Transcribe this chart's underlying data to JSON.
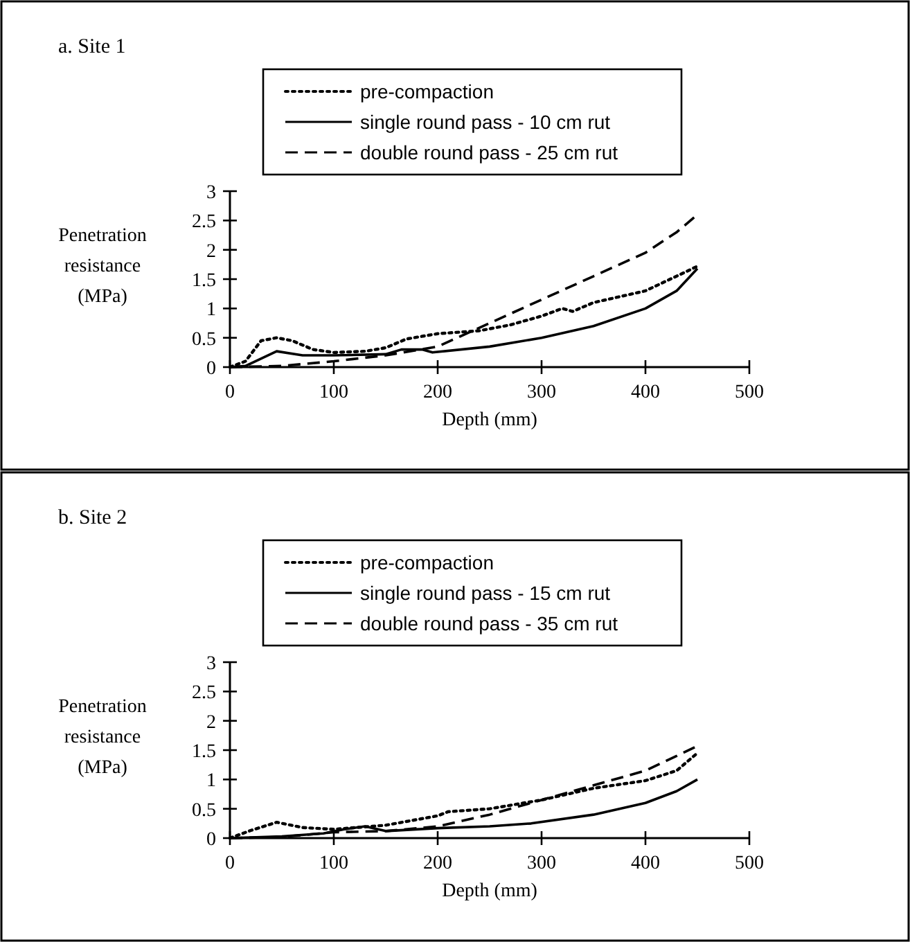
{
  "chart_data": [
    {
      "type": "line",
      "title": "a. Site 1",
      "xlabel": "Depth (mm)",
      "ylabel": "Penetration resistance (MPa)",
      "xlim": [
        0,
        500
      ],
      "xticks": [
        0,
        100,
        200,
        300,
        400,
        500
      ],
      "ylim": [
        0,
        3
      ],
      "yticks": [
        0,
        0.5,
        1,
        1.5,
        2,
        2.5,
        3
      ],
      "grid": false,
      "legend": "top",
      "marker": "none",
      "series": [
        {
          "name": "pre-compaction",
          "color": "#000000",
          "line_style": "dotted",
          "x": [
            0,
            15,
            30,
            45,
            60,
            80,
            100,
            130,
            150,
            170,
            200,
            240,
            270,
            300,
            320,
            330,
            350,
            400,
            430,
            450
          ],
          "values": [
            0,
            0.1,
            0.45,
            0.5,
            0.45,
            0.3,
            0.25,
            0.27,
            0.33,
            0.48,
            0.57,
            0.62,
            0.72,
            0.87,
            1.0,
            0.95,
            1.1,
            1.3,
            1.55,
            1.72
          ]
        },
        {
          "name": "single round pass - 10 cm rut",
          "color": "#000000",
          "line_style": "solid",
          "x": [
            0,
            15,
            45,
            70,
            100,
            150,
            165,
            185,
            195,
            250,
            300,
            350,
            400,
            430,
            450
          ],
          "values": [
            0,
            0.02,
            0.27,
            0.2,
            0.2,
            0.22,
            0.3,
            0.3,
            0.25,
            0.35,
            0.5,
            0.7,
            1.0,
            1.3,
            1.68
          ]
        },
        {
          "name": "double round pass - 25 cm rut",
          "color": "#000000",
          "line_style": "dashed",
          "x": [
            0,
            50,
            100,
            150,
            200,
            250,
            300,
            350,
            400,
            430,
            450
          ],
          "values": [
            0,
            0.02,
            0.1,
            0.2,
            0.35,
            0.75,
            1.15,
            1.55,
            1.95,
            2.3,
            2.6
          ]
        }
      ]
    },
    {
      "type": "line",
      "title": "b. Site 2",
      "xlabel": "Depth (mm)",
      "ylabel": "Penetration resistance (MPa)",
      "xlim": [
        0,
        500
      ],
      "xticks": [
        0,
        100,
        200,
        300,
        400,
        500
      ],
      "ylim": [
        0,
        3
      ],
      "yticks": [
        0,
        0.5,
        1,
        1.5,
        2,
        2.5,
        3
      ],
      "grid": false,
      "legend": "top",
      "marker": "none",
      "series": [
        {
          "name": "pre-compaction",
          "color": "#000000",
          "line_style": "dotted",
          "x": [
            0,
            20,
            45,
            70,
            100,
            150,
            200,
            210,
            250,
            300,
            350,
            400,
            430,
            450
          ],
          "values": [
            0,
            0.13,
            0.27,
            0.18,
            0.15,
            0.22,
            0.38,
            0.45,
            0.5,
            0.65,
            0.85,
            0.98,
            1.15,
            1.45
          ]
        },
        {
          "name": "single round pass - 15 cm rut",
          "color": "#000000",
          "line_style": "solid",
          "x": [
            0,
            50,
            90,
            110,
            130,
            150,
            200,
            250,
            290,
            350,
            400,
            430,
            450
          ],
          "values": [
            0,
            0.03,
            0.08,
            0.15,
            0.2,
            0.12,
            0.17,
            0.2,
            0.25,
            0.4,
            0.6,
            0.8,
            1.0
          ]
        },
        {
          "name": "double round pass - 35 cm rut",
          "color": "#000000",
          "line_style": "dashed",
          "x": [
            0,
            50,
            100,
            150,
            200,
            250,
            300,
            350,
            400,
            430,
            450
          ],
          "values": [
            0,
            0.02,
            0.1,
            0.12,
            0.2,
            0.4,
            0.65,
            0.9,
            1.15,
            1.4,
            1.57
          ]
        }
      ]
    }
  ]
}
